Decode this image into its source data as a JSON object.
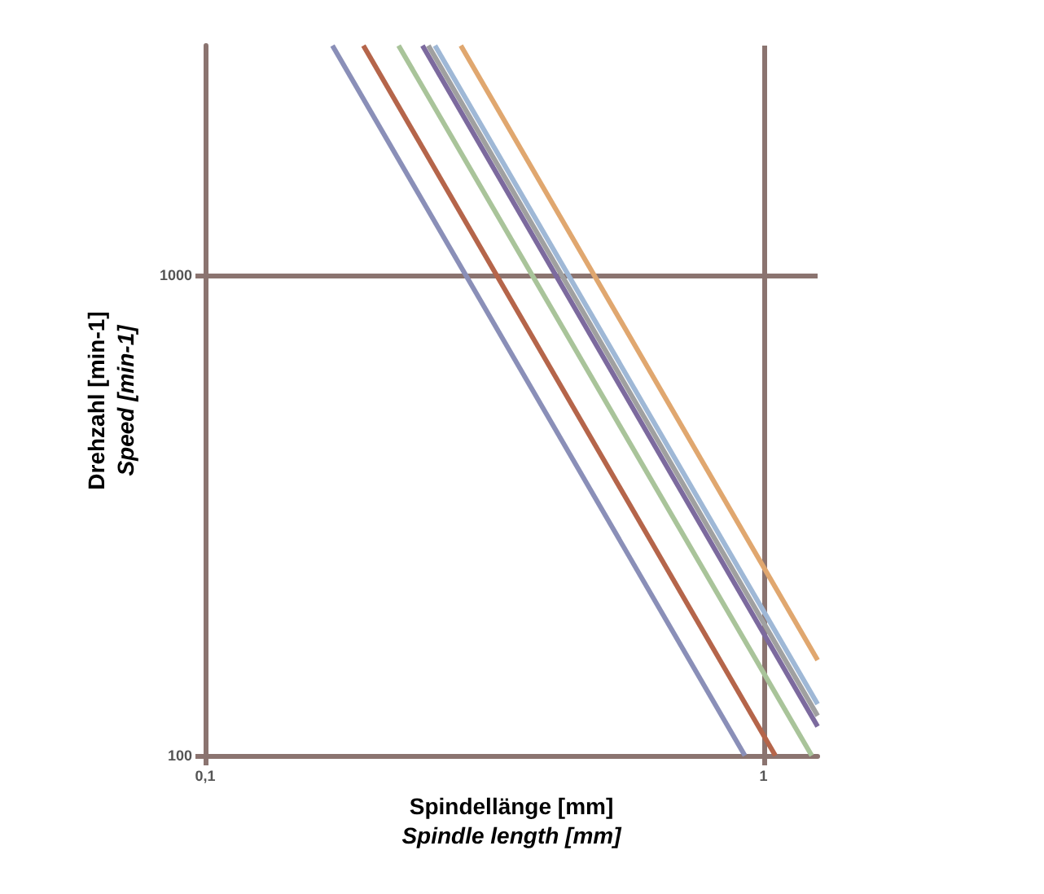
{
  "chart_data": {
    "type": "line",
    "xlabel": "Spindellänge [mm]\nSpindle length [mm]",
    "ylabel": "Drehzahl [min-1]\nSpeed [min-1]",
    "log": "xy",
    "xlim": [
      0.1,
      1.25
    ],
    "ylim": [
      100,
      3000
    ],
    "xticks": [
      {
        "value": 0.1,
        "label": "0,1"
      },
      1
    ],
    "yticks": [
      100,
      1000
    ],
    "grid": true,
    "marker": "none",
    "line_style": "solid",
    "series": [
      {
        "color": "#8a8fb8",
        "x": [
          0.169,
          0.926
        ],
        "values": [
          3000,
          100
        ]
      },
      {
        "color": "#b5654a",
        "x": [
          0.192,
          1.05
        ],
        "values": [
          3000,
          100
        ]
      },
      {
        "color": "#a9c49a",
        "x": [
          0.222,
          1.22
        ],
        "values": [
          3000,
          100
        ]
      },
      {
        "color": "#7c6a9e",
        "x": [
          0.245,
          1.25
        ],
        "values": [
          3000,
          115
        ]
      },
      {
        "color": "#a0a0a0",
        "x": [
          0.251,
          1.25
        ],
        "values": [
          3000,
          121
        ]
      },
      {
        "color": "#9fb8d6",
        "x": [
          0.258,
          1.25
        ],
        "values": [
          3000,
          128
        ]
      },
      {
        "color": "#e0a76f",
        "x": [
          0.287,
          1.25
        ],
        "values": [
          3000,
          158
        ]
      }
    ]
  }
}
